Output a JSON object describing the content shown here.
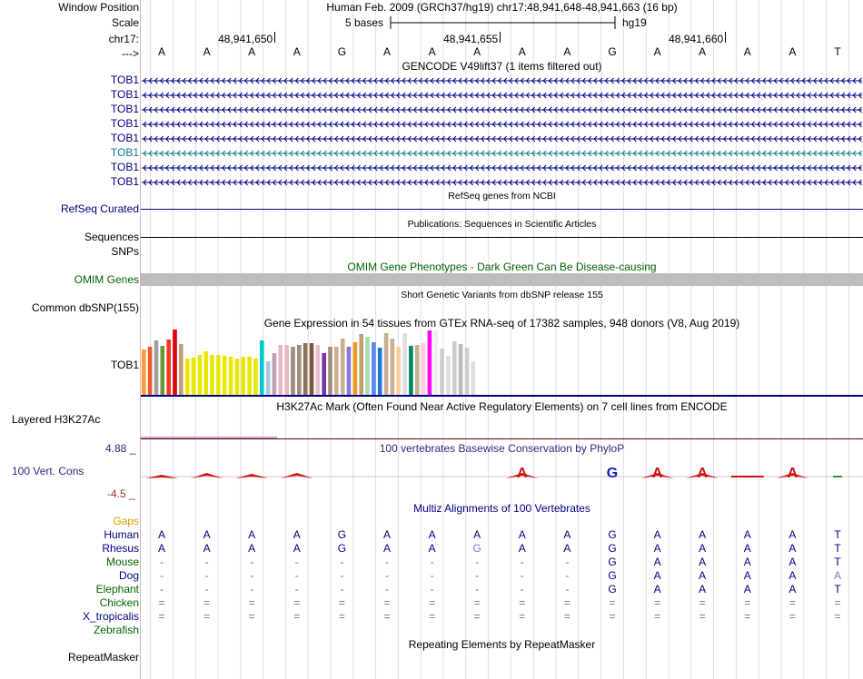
{
  "header": {
    "window_position_label": "Window Position",
    "window_position_value": "Human Feb. 2009 (GRCh37/hg19)   chr17:48,941,648-48,941,663 (16 bp)",
    "scale_label": "Scale",
    "scale_value": "5 bases",
    "scale_db": "hg19",
    "chrom_label": "chr17:",
    "positions": [
      "48,941,650",
      "48,941,655",
      "48,941,660"
    ],
    "strand_label": "--->",
    "bases": [
      "A",
      "A",
      "A",
      "A",
      "G",
      "A",
      "A",
      "A",
      "A",
      "A",
      "G",
      "A",
      "A",
      "A",
      "A",
      "T"
    ]
  },
  "gencode": {
    "title": "GENCODE V49lift37 (1 items filtered out)",
    "transcripts": [
      {
        "name": "TOB1",
        "color": "#000080"
      },
      {
        "name": "TOB1",
        "color": "#000080"
      },
      {
        "name": "TOB1",
        "color": "#000080"
      },
      {
        "name": "TOB1",
        "color": "#000080"
      },
      {
        "name": "TOB1",
        "color": "#000080"
      },
      {
        "name": "TOB1",
        "color": "#0c7c8c"
      },
      {
        "name": "TOB1",
        "color": "#000080"
      },
      {
        "name": "TOB1",
        "color": "#000080"
      }
    ]
  },
  "tracks": {
    "refseq_title": "RefSeq genes from NCBI",
    "refseq_label": "RefSeq Curated",
    "pubs_title": "Publications: Sequences in Scientific Articles",
    "sequences_label": "Sequences",
    "snps_label": "SNPs",
    "omim_title": "OMIM Gene Phenotypes - Dark Green Can Be Disease-causing",
    "omim_label": "OMIM Genes",
    "dbsnp_title": "Short Genetic Variants from dbSNP release 155",
    "dbsnp_label": "Common dbSNP(155)",
    "gtex_title": "Gene Expression in 54 tissues from GTEx RNA-seq of 17382 samples, 948 donors (V8, Aug 2019)",
    "gtex_label": "TOB1",
    "h3k27ac_title": "H3K27Ac Mark (Often Found Near Active Regulatory Elements) on 7 cell lines from ENCODE",
    "h3k27ac_label": "Layered H3K27Ac",
    "cons_title": "100 vertebrates Basewise Conservation by PhyloP",
    "cons_label": "100 Vert. Cons",
    "cons_max": "4.88 _",
    "cons_min": "-4.5 _",
    "multiz_title": "Multiz Alignments of 100 Vertebrates",
    "gaps_label": "Gaps",
    "repeat_title": "Repeating Elements by RepeatMasker",
    "repeat_label": "RepeatMasker"
  },
  "colors": {
    "navy": "#000080",
    "teal": "#0c7c8c",
    "green": "#006400",
    "orange": "#d2a000",
    "rust": "#a0302b",
    "cons_red": "#d01010",
    "cons_blue": "#1818c8"
  },
  "chart_data": {
    "type": "bar",
    "title": "Gene Expression in 54 tissues from GTEx RNA-seq of 17382 samples, 948 donors (V8, Aug 2019)",
    "series_name": "TOB1",
    "units": "relative expression (track height units, 0-72)",
    "values": [
      50,
      53,
      60,
      54,
      61,
      72,
      56,
      40,
      41,
      44,
      48,
      44,
      44,
      43,
      42,
      40,
      42,
      42,
      40,
      60,
      37,
      46,
      55,
      55,
      53,
      55,
      57,
      57,
      55,
      46,
      53,
      53,
      62,
      53,
      58,
      67,
      64,
      58,
      52,
      68,
      62,
      53,
      68,
      54,
      55,
      57,
      71,
      71,
      51,
      43,
      59,
      56,
      52,
      37
    ],
    "colors": [
      "#ff9933",
      "#f05a2a",
      "#a0a0a0",
      "#669933",
      "#ff3322",
      "#dd0000",
      "#cc9977",
      "#e8e800",
      "#e8e800",
      "#e8e800",
      "#e8e800",
      "#e8e800",
      "#e8e800",
      "#e8e800",
      "#e8e800",
      "#e8e800",
      "#e8e800",
      "#e8e800",
      "#e8e800",
      "#00c8cc",
      "#a6c6e0",
      "#c0a0b8",
      "#e8b8c0",
      "#e8b8c0",
      "#a08c78",
      "#a08c78",
      "#8c7458",
      "#7a5a3c",
      "#e8c0c8",
      "#7733aa",
      "#a08c78",
      "#c8b090",
      "#c8b090",
      "#8877dd",
      "#ee9922",
      "#c0a070",
      "#a8dcb0",
      "#5588ee",
      "#2277dd",
      "#c8b090",
      "#c8b090",
      "#ffcc99",
      "#dddddd",
      "#008866",
      "#c8b090",
      "#ffccdd",
      "#ff00ff",
      "#eeeeee",
      "#cccccc",
      "#dddddd",
      "#cccccc",
      "#bbbbbb",
      "#cccccc",
      "#dddddd"
    ],
    "ylim": [
      0,
      72
    ]
  },
  "multiz": {
    "species": [
      {
        "name": "Human",
        "color": "#000080",
        "seq": [
          "A",
          "A",
          "A",
          "A",
          "G",
          "A",
          "A",
          "A",
          "A",
          "A",
          "G",
          "A",
          "A",
          "A",
          "A",
          "T"
        ]
      },
      {
        "name": "Rhesus",
        "color": "#000080",
        "seq": [
          "A",
          "A",
          "A",
          "A",
          "G",
          "A",
          "A",
          "G",
          "A",
          "A",
          "G",
          "A",
          "A",
          "A",
          "A",
          "T"
        ]
      },
      {
        "name": "Mouse",
        "color": "#006400",
        "seq": [
          "-",
          "-",
          "-",
          "-",
          "-",
          "-",
          "-",
          "-",
          "-",
          "-",
          "G",
          "A",
          "A",
          "A",
          "A",
          "T"
        ]
      },
      {
        "name": "Dog",
        "color": "#000080",
        "seq": [
          "-",
          "-",
          "-",
          "-",
          "-",
          "-",
          "-",
          "-",
          "-",
          "-",
          "G",
          "A",
          "A",
          "A",
          "A",
          "A"
        ]
      },
      {
        "name": "Elephant",
        "color": "#006400",
        "seq": [
          "-",
          "-",
          "-",
          "-",
          "-",
          "-",
          "-",
          "-",
          "-",
          "-",
          "G",
          "A",
          "A",
          "A",
          "A",
          "T"
        ]
      },
      {
        "name": "Chicken",
        "color": "#006400",
        "seq": [
          "=",
          "=",
          "=",
          "=",
          "=",
          "=",
          "=",
          "=",
          "=",
          "=",
          "=",
          "=",
          "=",
          "=",
          "=",
          "="
        ]
      },
      {
        "name": "X_tropicalis",
        "color": "#000080",
        "seq": [
          "=",
          "=",
          "=",
          "=",
          "=",
          "=",
          "=",
          "=",
          "=",
          "=",
          "=",
          "=",
          "=",
          "=",
          "=",
          "="
        ]
      },
      {
        "name": "Zebrafish",
        "color": "#006400",
        "seq": []
      }
    ]
  }
}
